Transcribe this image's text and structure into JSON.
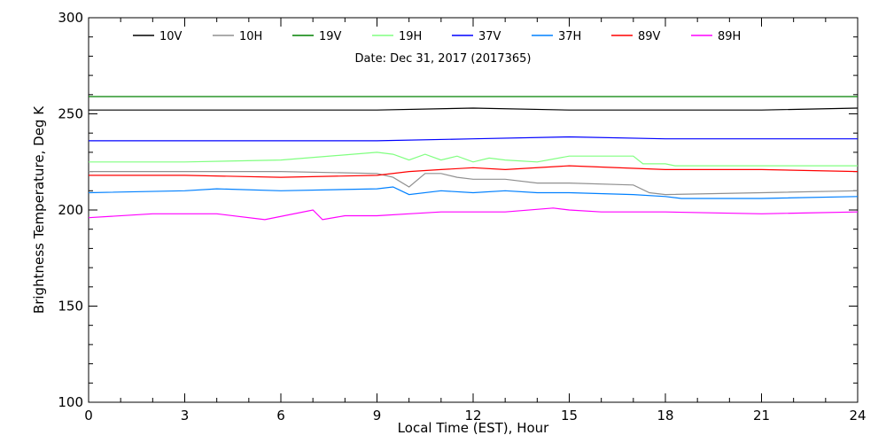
{
  "chart_data": {
    "type": "line",
    "xlabel": "Local Time (EST), Hour",
    "ylabel": "Brightness Temperature, Deg K",
    "annotation": "Date: Dec 31, 2017 (2017365)",
    "xlim": [
      0,
      24
    ],
    "ylim": [
      100,
      300
    ],
    "xticks": [
      0,
      3,
      6,
      9,
      12,
      15,
      18,
      21,
      24
    ],
    "yticks": [
      100,
      150,
      200,
      250,
      300
    ],
    "x_tick_labels": [
      "0",
      "3",
      "6",
      "9",
      "12",
      "15",
      "18",
      "21",
      "24"
    ],
    "y_tick_labels": [
      "100",
      "150",
      "200",
      "250",
      "300"
    ],
    "legend_position": "top",
    "series": [
      {
        "name": "10V",
        "color": "#000000",
        "x": [
          0,
          3,
          6,
          9,
          12,
          15,
          18,
          21,
          24
        ],
        "values": [
          252,
          252,
          252,
          252,
          253,
          252,
          252,
          252,
          253
        ]
      },
      {
        "name": "10H",
        "color": "#909090",
        "x": [
          0,
          3,
          6,
          9,
          9.5,
          10,
          10.5,
          11,
          11.5,
          12,
          13,
          14,
          15,
          17,
          17.5,
          18,
          21,
          24
        ],
        "values": [
          220,
          220,
          220,
          219,
          217,
          212,
          219,
          219,
          217,
          216,
          216,
          214,
          214,
          213,
          209,
          208,
          209,
          210
        ]
      },
      {
        "name": "19V",
        "color": "#008000",
        "x": [
          0,
          3,
          6,
          9,
          12,
          15,
          18,
          21,
          24
        ],
        "values": [
          259,
          259,
          259,
          259,
          259,
          259,
          259,
          259,
          259
        ]
      },
      {
        "name": "19H",
        "color": "#80ff80",
        "x": [
          0,
          3,
          6,
          9,
          9.5,
          10,
          10.5,
          11,
          11.5,
          12,
          12.5,
          13,
          14,
          15,
          17,
          17.3,
          18,
          18.3,
          21,
          24
        ],
        "values": [
          225,
          225,
          226,
          230,
          229,
          226,
          229,
          226,
          228,
          225,
          227,
          226,
          225,
          228,
          228,
          224,
          224,
          223,
          223,
          223
        ]
      },
      {
        "name": "37V",
        "color": "#0000ff",
        "x": [
          0,
          3,
          6,
          9,
          12,
          15,
          18,
          21,
          24
        ],
        "values": [
          236,
          236,
          236,
          236,
          237,
          238,
          237,
          237,
          237
        ]
      },
      {
        "name": "37H",
        "color": "#0080ff",
        "x": [
          0,
          3,
          4,
          6,
          9,
          9.5,
          10,
          11,
          12,
          13,
          14,
          15,
          17,
          18,
          18.5,
          21,
          24
        ],
        "values": [
          209,
          210,
          211,
          210,
          211,
          212,
          208,
          210,
          209,
          210,
          209,
          209,
          208,
          207,
          206,
          206,
          207
        ]
      },
      {
        "name": "89V",
        "color": "#ff0000",
        "x": [
          0,
          3,
          6,
          9,
          10,
          11,
          12,
          13,
          15,
          18,
          21,
          24
        ],
        "values": [
          218,
          218,
          217,
          218,
          220,
          221,
          222,
          221,
          223,
          221,
          221,
          220
        ]
      },
      {
        "name": "89H",
        "color": "#ff00ff",
        "x": [
          0,
          2,
          4,
          5.5,
          7,
          7.3,
          8,
          9,
          10,
          11,
          12,
          13,
          14.5,
          15,
          16,
          18,
          21,
          24
        ],
        "values": [
          196,
          198,
          198,
          195,
          200,
          195,
          197,
          197,
          198,
          199,
          199,
          199,
          201,
          200,
          199,
          199,
          198,
          199
        ]
      }
    ]
  }
}
